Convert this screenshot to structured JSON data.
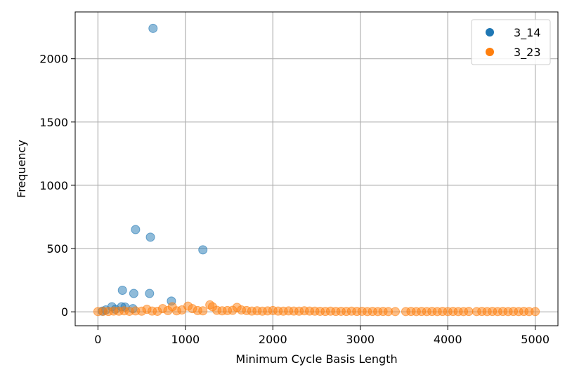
{
  "chart_data": {
    "type": "scatter",
    "title": "",
    "xlabel": "Minimum Cycle Basis Length",
    "ylabel": "Frequency",
    "xlim": [
      -260,
      5260
    ],
    "ylim": [
      -110,
      2370
    ],
    "x_ticks": [
      0,
      1000,
      2000,
      3000,
      4000,
      5000
    ],
    "x_tick_labels": [
      "0",
      "1000",
      "2000",
      "3000",
      "4000",
      "5000"
    ],
    "y_ticks": [
      0,
      500,
      1000,
      1500,
      2000
    ],
    "y_tick_labels": [
      "0",
      "500",
      "1000",
      "1500",
      "2000"
    ],
    "grid": true,
    "legend_placement": "top-right",
    "series": [
      {
        "name": "3_14",
        "color": "#1f77b4",
        "points": [
          {
            "x": 630,
            "y": 2240
          },
          {
            "x": 430,
            "y": 650
          },
          {
            "x": 600,
            "y": 590
          },
          {
            "x": 1200,
            "y": 490
          },
          {
            "x": 280,
            "y": 170
          },
          {
            "x": 410,
            "y": 145
          },
          {
            "x": 590,
            "y": 145
          },
          {
            "x": 840,
            "y": 85
          },
          {
            "x": 160,
            "y": 40
          },
          {
            "x": 270,
            "y": 40
          },
          {
            "x": 310,
            "y": 38
          },
          {
            "x": 90,
            "y": 15
          },
          {
            "x": 200,
            "y": 20
          },
          {
            "x": 400,
            "y": 25
          },
          {
            "x": 50,
            "y": 5
          }
        ]
      },
      {
        "name": "3_23",
        "color": "#ff7f0e",
        "points": [
          {
            "x": 0,
            "y": 2
          },
          {
            "x": 60,
            "y": 4
          },
          {
            "x": 120,
            "y": 3
          },
          {
            "x": 180,
            "y": 6
          },
          {
            "x": 240,
            "y": 5
          },
          {
            "x": 300,
            "y": 8
          },
          {
            "x": 360,
            "y": 4
          },
          {
            "x": 430,
            "y": 7
          },
          {
            "x": 500,
            "y": 5
          },
          {
            "x": 560,
            "y": 20
          },
          {
            "x": 620,
            "y": 6
          },
          {
            "x": 680,
            "y": 4
          },
          {
            "x": 740,
            "y": 25
          },
          {
            "x": 800,
            "y": 10
          },
          {
            "x": 850,
            "y": 40
          },
          {
            "x": 900,
            "y": 8
          },
          {
            "x": 960,
            "y": 15
          },
          {
            "x": 1030,
            "y": 45
          },
          {
            "x": 1080,
            "y": 25
          },
          {
            "x": 1140,
            "y": 10
          },
          {
            "x": 1200,
            "y": 8
          },
          {
            "x": 1280,
            "y": 55
          },
          {
            "x": 1310,
            "y": 40
          },
          {
            "x": 1360,
            "y": 12
          },
          {
            "x": 1420,
            "y": 8
          },
          {
            "x": 1480,
            "y": 10
          },
          {
            "x": 1540,
            "y": 12
          },
          {
            "x": 1590,
            "y": 35
          },
          {
            "x": 1640,
            "y": 15
          },
          {
            "x": 1700,
            "y": 10
          },
          {
            "x": 1760,
            "y": 6
          },
          {
            "x": 1820,
            "y": 8
          },
          {
            "x": 1880,
            "y": 5
          },
          {
            "x": 1940,
            "y": 7
          },
          {
            "x": 2000,
            "y": 10
          },
          {
            "x": 2060,
            "y": 6
          },
          {
            "x": 2120,
            "y": 5
          },
          {
            "x": 2180,
            "y": 7
          },
          {
            "x": 2240,
            "y": 6
          },
          {
            "x": 2300,
            "y": 5
          },
          {
            "x": 2360,
            "y": 8
          },
          {
            "x": 2420,
            "y": 6
          },
          {
            "x": 2480,
            "y": 5
          },
          {
            "x": 2540,
            "y": 4
          },
          {
            "x": 2600,
            "y": 3
          },
          {
            "x": 2660,
            "y": 5
          },
          {
            "x": 2720,
            "y": 3
          },
          {
            "x": 2780,
            "y": 4
          },
          {
            "x": 2840,
            "y": 3
          },
          {
            "x": 2900,
            "y": 5
          },
          {
            "x": 2960,
            "y": 3
          },
          {
            "x": 3020,
            "y": 4
          },
          {
            "x": 3080,
            "y": 2
          },
          {
            "x": 3140,
            "y": 3
          },
          {
            "x": 3200,
            "y": 2
          },
          {
            "x": 3260,
            "y": 3
          },
          {
            "x": 3320,
            "y": 2
          },
          {
            "x": 3400,
            "y": 2
          },
          {
            "x": 3520,
            "y": 2
          },
          {
            "x": 3580,
            "y": 3
          },
          {
            "x": 3640,
            "y": 2
          },
          {
            "x": 3700,
            "y": 3
          },
          {
            "x": 3760,
            "y": 2
          },
          {
            "x": 3820,
            "y": 3
          },
          {
            "x": 3880,
            "y": 2
          },
          {
            "x": 3940,
            "y": 3
          },
          {
            "x": 4000,
            "y": 2
          },
          {
            "x": 4060,
            "y": 3
          },
          {
            "x": 4120,
            "y": 2
          },
          {
            "x": 4180,
            "y": 2
          },
          {
            "x": 4240,
            "y": 3
          },
          {
            "x": 4330,
            "y": 2
          },
          {
            "x": 4390,
            "y": 3
          },
          {
            "x": 4450,
            "y": 2
          },
          {
            "x": 4510,
            "y": 3
          },
          {
            "x": 4570,
            "y": 2
          },
          {
            "x": 4630,
            "y": 3
          },
          {
            "x": 4690,
            "y": 2
          },
          {
            "x": 4750,
            "y": 3
          },
          {
            "x": 4810,
            "y": 2
          },
          {
            "x": 4870,
            "y": 3
          },
          {
            "x": 4930,
            "y": 2
          },
          {
            "x": 5000,
            "y": 2
          }
        ]
      }
    ]
  }
}
